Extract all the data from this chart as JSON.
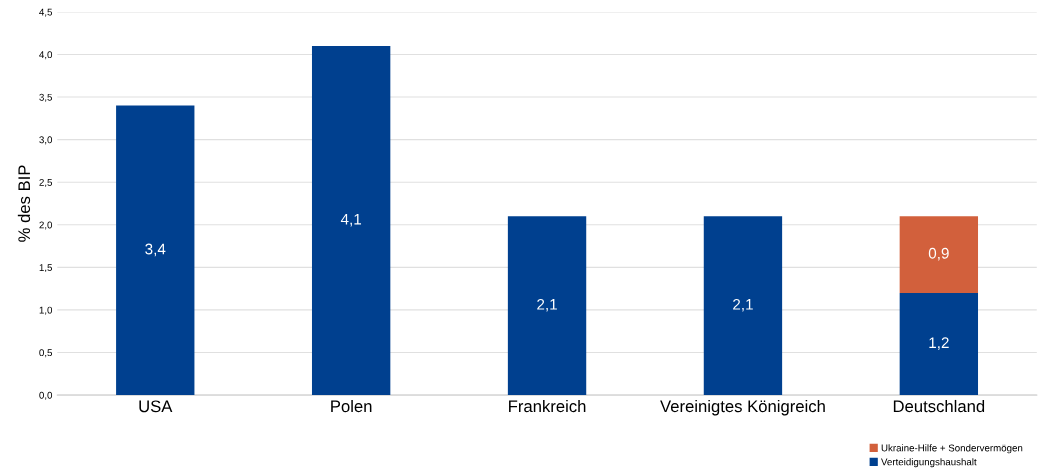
{
  "chart_data": {
    "type": "bar",
    "stacked": true,
    "ylabel": "% des BIP",
    "categories": [
      "USA",
      "Polen",
      "Frankreich",
      "Vereinigtes Königreich",
      "Deutschland"
    ],
    "series": [
      {
        "name": "Verteidigungshaushalt",
        "color": "#00408f",
        "values": [
          3.4,
          4.1,
          2.1,
          2.1,
          1.2
        ],
        "value_labels": [
          "3,4",
          "4,1",
          "2,1",
          "2,1",
          "1,2"
        ]
      },
      {
        "name": "Ukraine-Hilfe + Sondervermögen",
        "color": "#d2603c",
        "values": [
          null,
          null,
          null,
          null,
          0.9
        ],
        "value_labels": [
          null,
          null,
          null,
          null,
          "0,9"
        ]
      }
    ],
    "ylim": [
      0,
      4.5
    ],
    "yticks": [
      {
        "value": 0,
        "label": "0,0"
      },
      {
        "value": 0.5,
        "label": "0,5"
      },
      {
        "value": 1,
        "label": "1,0"
      },
      {
        "value": 1.5,
        "label": "1,5"
      },
      {
        "value": 2,
        "label": "2,0"
      },
      {
        "value": 2.5,
        "label": "2,5"
      },
      {
        "value": 3,
        "label": "3,0"
      },
      {
        "value": 3.5,
        "label": "3,5"
      },
      {
        "value": 4,
        "label": "4,0"
      },
      {
        "value": 4.5,
        "label": "4,5"
      }
    ],
    "grid": "y",
    "legend": "bottom right"
  }
}
